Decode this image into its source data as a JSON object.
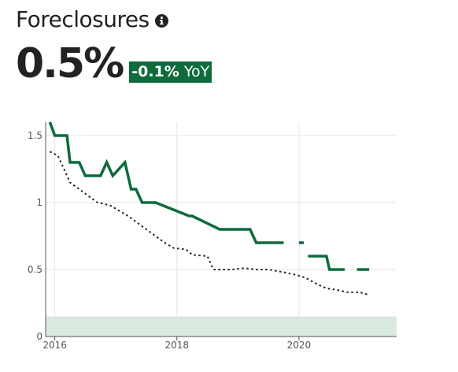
{
  "header": {
    "title": "Foreclosures",
    "info_icon": "info-icon"
  },
  "metric": {
    "value": "0.5%",
    "change": "-0.1%",
    "change_suffix": "YoY"
  },
  "colors": {
    "accent": "#0d6b3c",
    "series_primary": "#0d6b3c",
    "series_secondary": "#222222",
    "band": "#d9e9df",
    "grid": "#e6e6e6"
  },
  "chart_data": {
    "type": "line",
    "title": "",
    "xlabel": "",
    "ylabel": "",
    "xlim": [
      2015.85,
      2021.6
    ],
    "ylim": [
      0,
      1.6
    ],
    "x_ticks": [
      {
        "value": 2016,
        "label": "2016"
      },
      {
        "value": 2018,
        "label": "2018"
      },
      {
        "value": 2020,
        "label": "2020"
      }
    ],
    "y_ticks": [
      {
        "value": 0,
        "label": "0"
      },
      {
        "value": 0.5,
        "label": "0.5"
      },
      {
        "value": 1,
        "label": "1"
      },
      {
        "value": 1.5,
        "label": "1.5"
      }
    ],
    "grid": true,
    "band": {
      "y_from": 0,
      "y_to": 0.15
    },
    "series": [
      {
        "style": "solid",
        "x": [
          2015.92,
          2016.0,
          2016.2,
          2016.25,
          2016.4,
          2016.5,
          2016.75,
          2016.85,
          2016.95,
          2017.15,
          2017.25,
          2017.33,
          2017.43,
          2017.65,
          2018.2,
          2018.25,
          2018.7,
          2019.2,
          2019.3,
          2019.75,
          null,
          2020.0,
          2020.08,
          null,
          2020.15,
          2020.25,
          2020.45,
          2020.5,
          2020.75,
          null,
          2020.95,
          2021.15
        ],
        "y": [
          1.6,
          1.5,
          1.5,
          1.3,
          1.3,
          1.2,
          1.2,
          1.3,
          1.2,
          1.3,
          1.1,
          1.1,
          1.0,
          1.0,
          0.9,
          0.9,
          0.8,
          0.8,
          0.7,
          0.7,
          null,
          0.7,
          0.7,
          null,
          0.6,
          0.6,
          0.6,
          0.5,
          0.5,
          null,
          0.5,
          0.5
        ]
      },
      {
        "style": "dotted",
        "x": [
          2015.92,
          2016.05,
          2016.15,
          2016.25,
          2016.4,
          2016.55,
          2016.7,
          2016.9,
          2017.05,
          2017.2,
          2017.35,
          2017.5,
          2017.65,
          2017.8,
          2017.95,
          2018.15,
          2018.25,
          2018.5,
          2018.55,
          2018.6,
          2018.9,
          2019.1,
          2019.3,
          2019.5,
          2019.75,
          2019.95,
          2020.1,
          2020.3,
          2020.45,
          2020.6,
          2020.8,
          2021.0,
          2021.15
        ],
        "y": [
          1.38,
          1.35,
          1.25,
          1.15,
          1.1,
          1.05,
          1.0,
          0.98,
          0.94,
          0.9,
          0.85,
          0.8,
          0.75,
          0.7,
          0.66,
          0.65,
          0.61,
          0.6,
          0.55,
          0.5,
          0.5,
          0.51,
          0.5,
          0.5,
          0.48,
          0.46,
          0.44,
          0.39,
          0.36,
          0.35,
          0.33,
          0.33,
          0.31
        ]
      }
    ]
  }
}
